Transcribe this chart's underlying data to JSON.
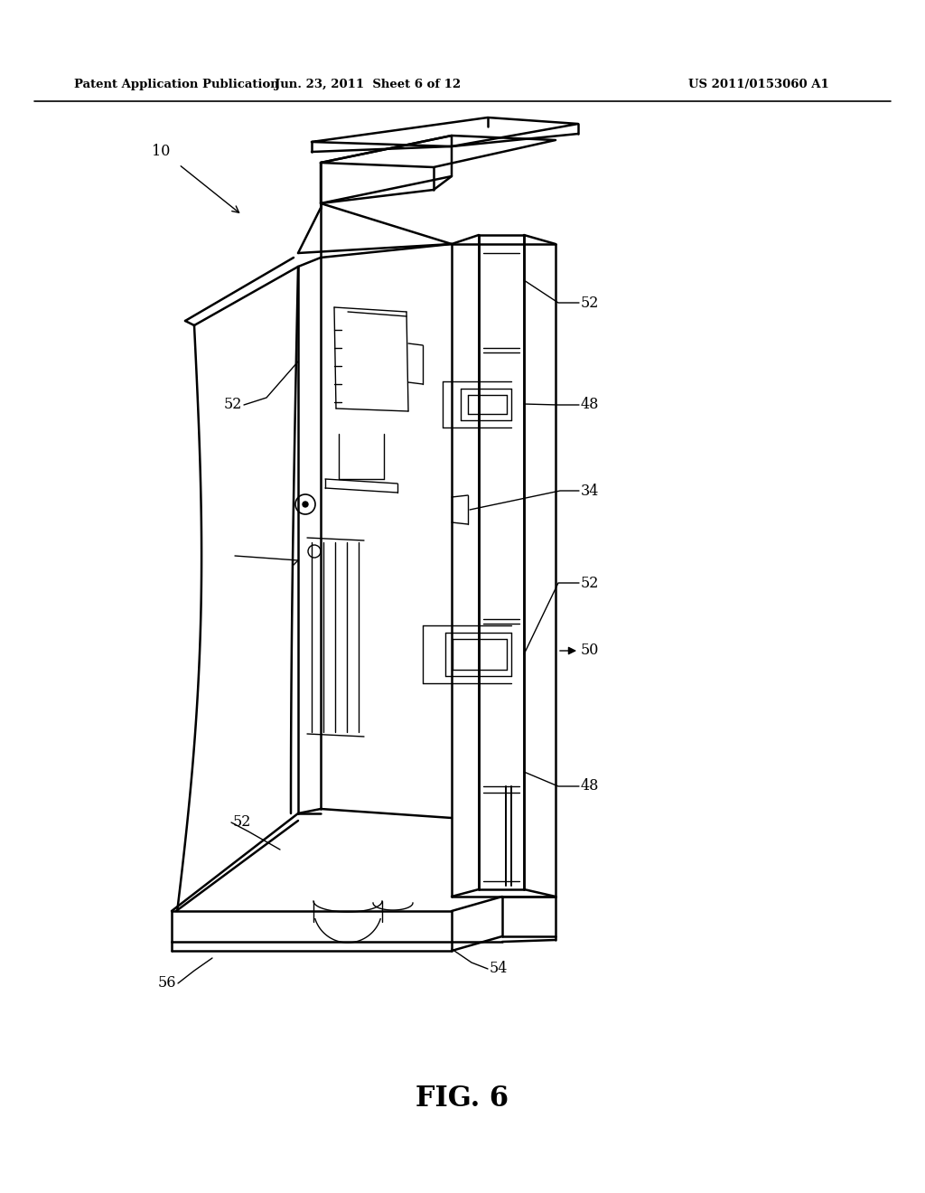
{
  "bg_color": "#ffffff",
  "header_left": "Patent Application Publication",
  "header_mid": "Jun. 23, 2011  Sheet 6 of 12",
  "header_right": "US 2011/0153060 A1",
  "figure_label": "FIG. 6",
  "lw_main": 1.8,
  "lw_thin": 1.0,
  "lw_header": 1.2,
  "label_fontsize": 11.5,
  "header_fontsize": 9.5,
  "fig_label_fontsize": 22
}
